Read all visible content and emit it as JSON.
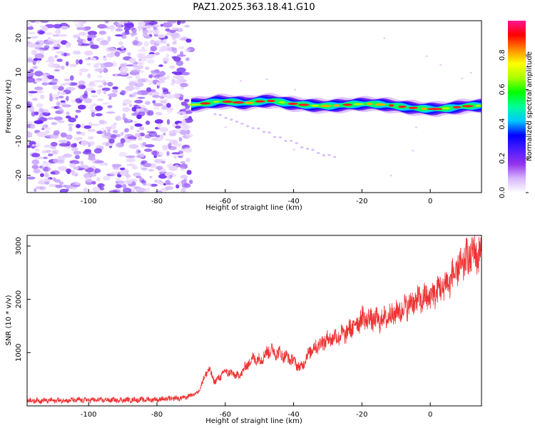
{
  "title": "PAZ1.2025.363.18.41.G10",
  "chart_data": [
    {
      "type": "heatmap",
      "name": "spectrogram",
      "xlabel": "Height of straight line (km)",
      "ylabel": "Frequency (Hz)",
      "xlim": [
        -118,
        15
      ],
      "ylim": [
        -25,
        25
      ],
      "xticks": [
        -100,
        -80,
        -60,
        -40,
        -20,
        0
      ],
      "yticks": [
        -20,
        -10,
        0,
        10,
        20
      ],
      "noise_region_x": [
        -118,
        -70
      ],
      "signal_track": {
        "x": [
          -70,
          -66,
          -62,
          -58,
          -54,
          -50,
          -46,
          -42,
          -38,
          -34,
          -30,
          -26,
          -22,
          -18,
          -14,
          -10,
          -6,
          -2,
          2,
          6,
          10,
          15
        ],
        "y": [
          0.5,
          0.9,
          1.5,
          1.4,
          1.0,
          1.5,
          1.7,
          1.0,
          0.6,
          0.3,
          0.2,
          0.4,
          0.7,
          0.8,
          0.6,
          0.2,
          -0.3,
          -0.6,
          -0.7,
          -0.4,
          0.1,
          0.3
        ]
      },
      "faint_trace": {
        "x": [
          -63,
          -28
        ],
        "y": [
          -2,
          -15
        ]
      },
      "colorbar": {
        "label": "Normalized spectral amplitude",
        "range": [
          0,
          1
        ],
        "ticks": [
          "0.0",
          "0.2",
          "0.4",
          "0.6",
          "0.8"
        ],
        "colors": [
          "#ffffff",
          "#d8b4fe",
          "#9333ea",
          "#4c1dff",
          "#0000ff",
          "#00c8ff",
          "#00ff99",
          "#00ff00",
          "#aaff00",
          "#ffff00",
          "#ff8800",
          "#ff0000",
          "#ff1493"
        ]
      }
    },
    {
      "type": "line",
      "name": "snr",
      "xlabel": "Height of straight line (km)",
      "ylabel": "SNR (10 * v/v)",
      "xlim": [
        -118,
        15
      ],
      "ylim": [
        0,
        3200
      ],
      "xticks": [
        -100,
        -80,
        -60,
        -40,
        -20,
        0
      ],
      "yticks": [
        1000,
        2000,
        3000
      ],
      "color": "#ee3333",
      "series": [
        {
          "name": "SNR",
          "x": [
            -118,
            -110,
            -100,
            -90,
            -80,
            -72,
            -68,
            -66,
            -65,
            -63,
            -60,
            -56,
            -52,
            -50,
            -47,
            -44,
            -40,
            -38,
            -35,
            -30,
            -25,
            -20,
            -15,
            -10,
            -5,
            0,
            5,
            10,
            13,
            15
          ],
          "y": [
            100,
            100,
            110,
            110,
            120,
            150,
            250,
            550,
            700,
            450,
            650,
            560,
            900,
            860,
            1050,
            980,
            850,
            700,
            1050,
            1250,
            1350,
            1650,
            1600,
            1750,
            1950,
            2050,
            2300,
            2700,
            2900,
            2800
          ]
        }
      ]
    }
  ]
}
